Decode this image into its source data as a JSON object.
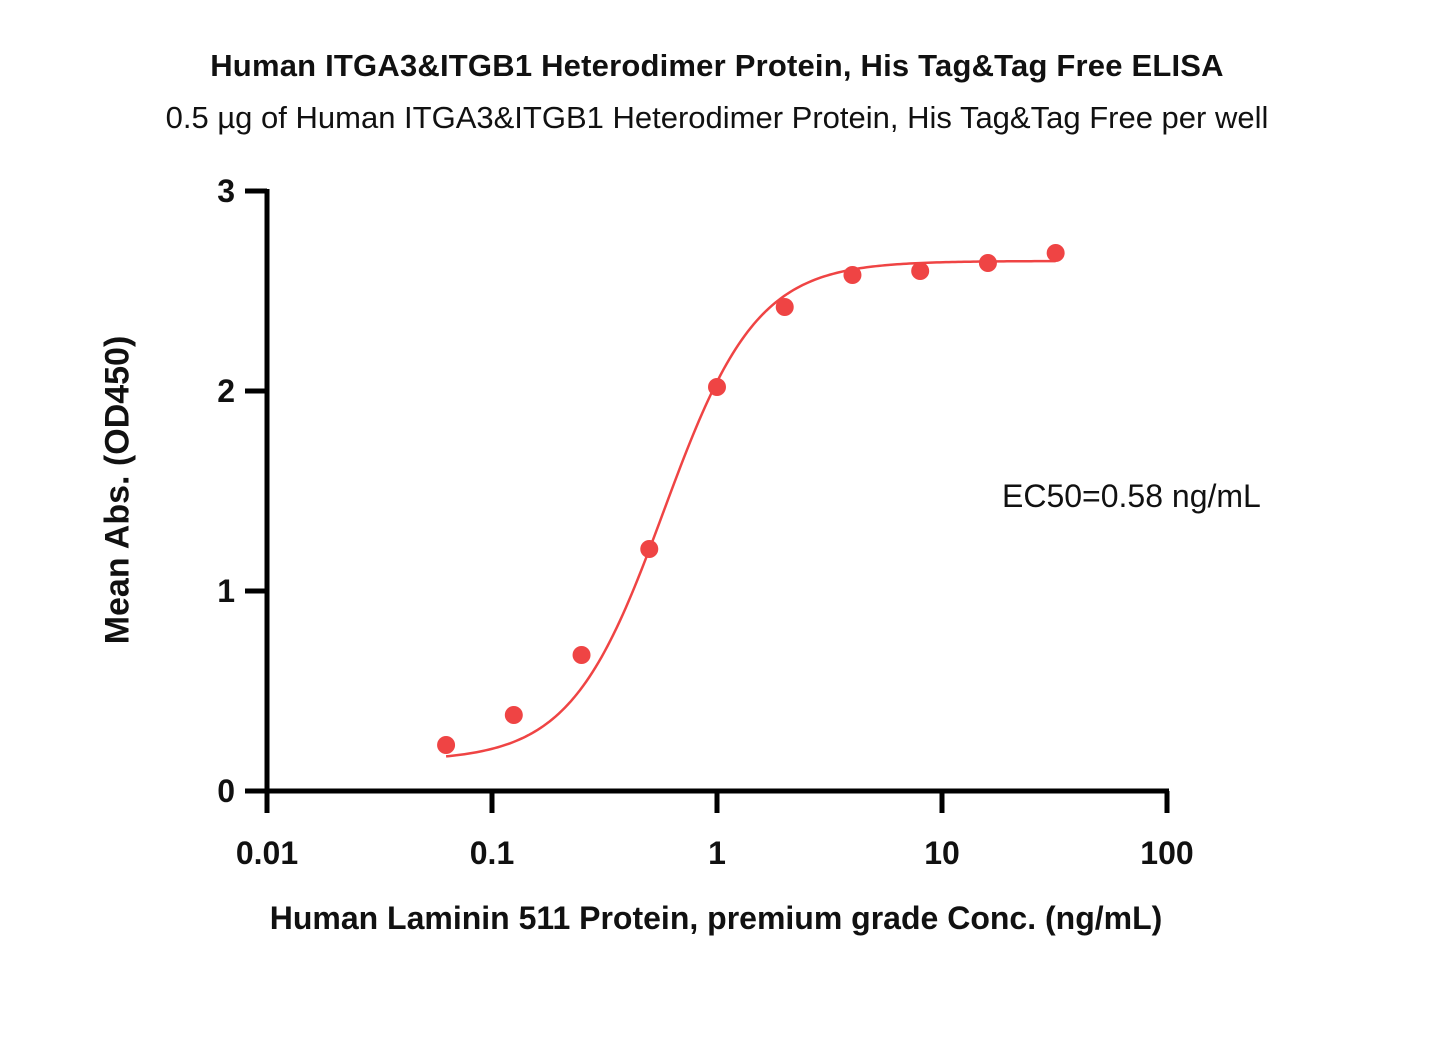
{
  "chart_data": {
    "type": "scatter",
    "title": "Human ITGA3&ITGB1 Heterodimer Protein, His Tag&Tag Free ELISA",
    "subtitle": "0.5 µg of Human ITGA3&ITGB1 Heterodimer Protein, His Tag&Tag Free per well",
    "xlabel": "Human Laminin 511 Protein, premium grade Conc. (ng/mL)",
    "ylabel": "Mean Abs. (OD450)",
    "x_scale": "log",
    "xlim": [
      0.01,
      100
    ],
    "ylim": [
      0,
      3
    ],
    "x_ticks": [
      {
        "value": 0.01,
        "label": "0.01"
      },
      {
        "value": 0.1,
        "label": "0.1"
      },
      {
        "value": 1,
        "label": "1"
      },
      {
        "value": 10,
        "label": "10"
      },
      {
        "value": 100,
        "label": "100"
      }
    ],
    "y_ticks": [
      {
        "value": 0,
        "label": "0"
      },
      {
        "value": 1,
        "label": "1"
      },
      {
        "value": 2,
        "label": "2"
      },
      {
        "value": 3,
        "label": "3"
      }
    ],
    "grid": false,
    "color": "#ef4444",
    "series": [
      {
        "x": [
          0.0625,
          0.125,
          0.25,
          0.5,
          1,
          2,
          4,
          8,
          16,
          32
        ],
        "y": [
          0.23,
          0.38,
          0.68,
          1.21,
          2.02,
          2.42,
          2.58,
          2.6,
          2.64,
          2.69
        ]
      }
    ],
    "fit": {
      "model": "4PL",
      "bottom": 0.15,
      "top": 2.65,
      "ec50": 0.58,
      "hill": 2.1
    },
    "annotation": "EC50=0.58 ng/mL"
  }
}
